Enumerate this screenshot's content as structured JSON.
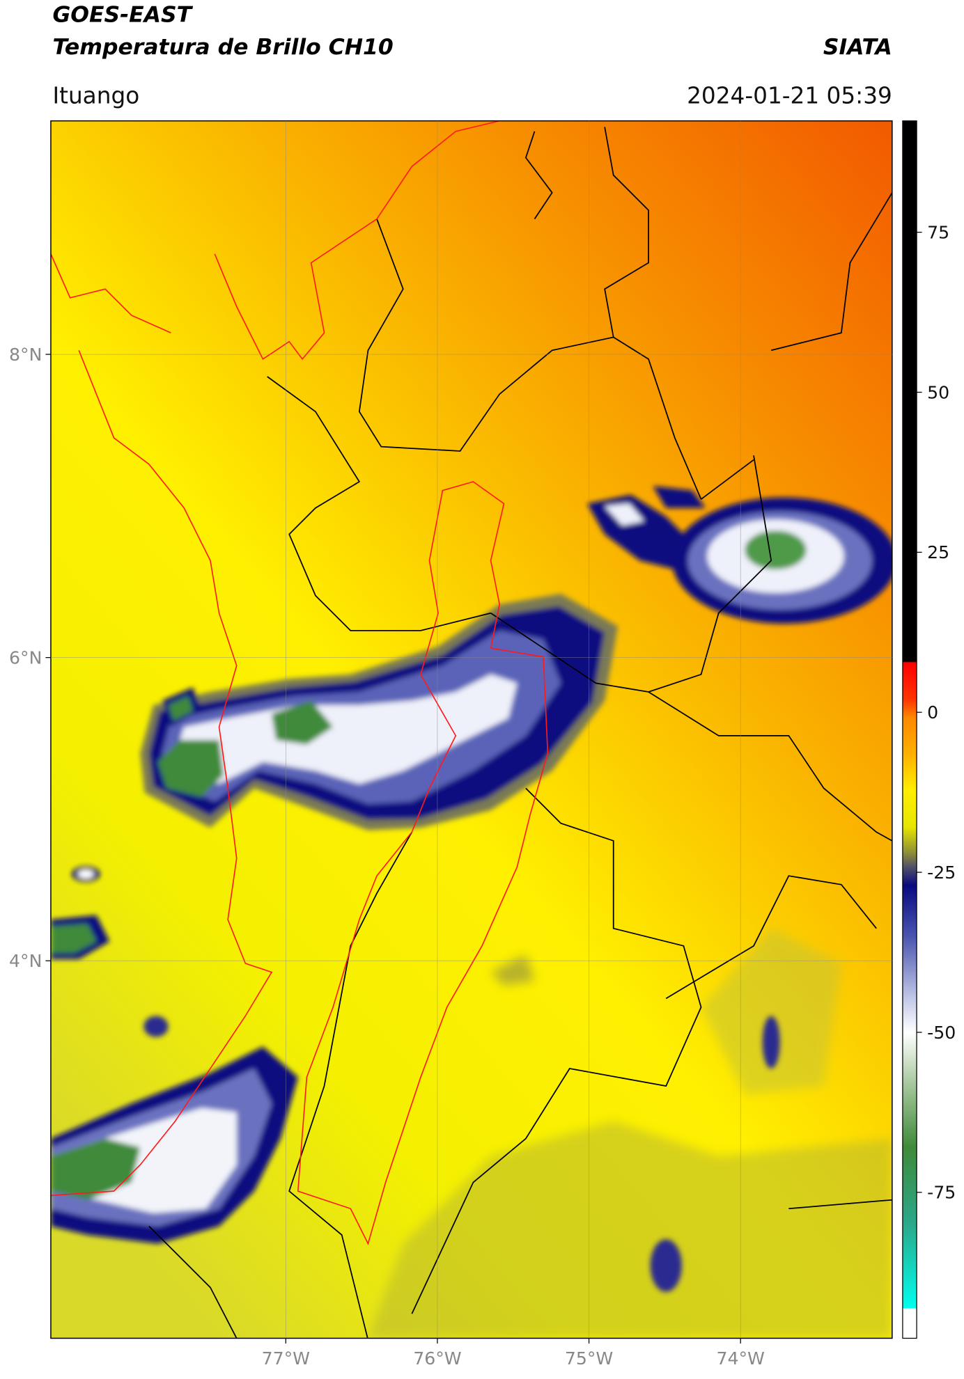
{
  "header": {
    "title": "GOES-EAST",
    "subtitle": "Temperatura de Brillo CH10",
    "brand": "SIATA",
    "location": "Ituango",
    "timestamp": "2024-01-21 05:39"
  },
  "map": {
    "xlim": [
      -78.55,
      -73.0
    ],
    "ylim": [
      1.51,
      9.54
    ],
    "xticks": [
      {
        "value": -77,
        "label": "77°W"
      },
      {
        "value": -76,
        "label": "76°W"
      },
      {
        "value": -75,
        "label": "75°W"
      },
      {
        "value": -74,
        "label": "74°W"
      }
    ],
    "yticks": [
      {
        "value": 4,
        "label": "4°N"
      },
      {
        "value": 6,
        "label": "6°N"
      },
      {
        "value": 8,
        "label": "8°N"
      }
    ],
    "grid": true
  },
  "colorbar": {
    "clim": [
      -97.8,
      92.4
    ],
    "ticks": [
      -75,
      -50,
      -25,
      0,
      25,
      50,
      75
    ]
  }
}
